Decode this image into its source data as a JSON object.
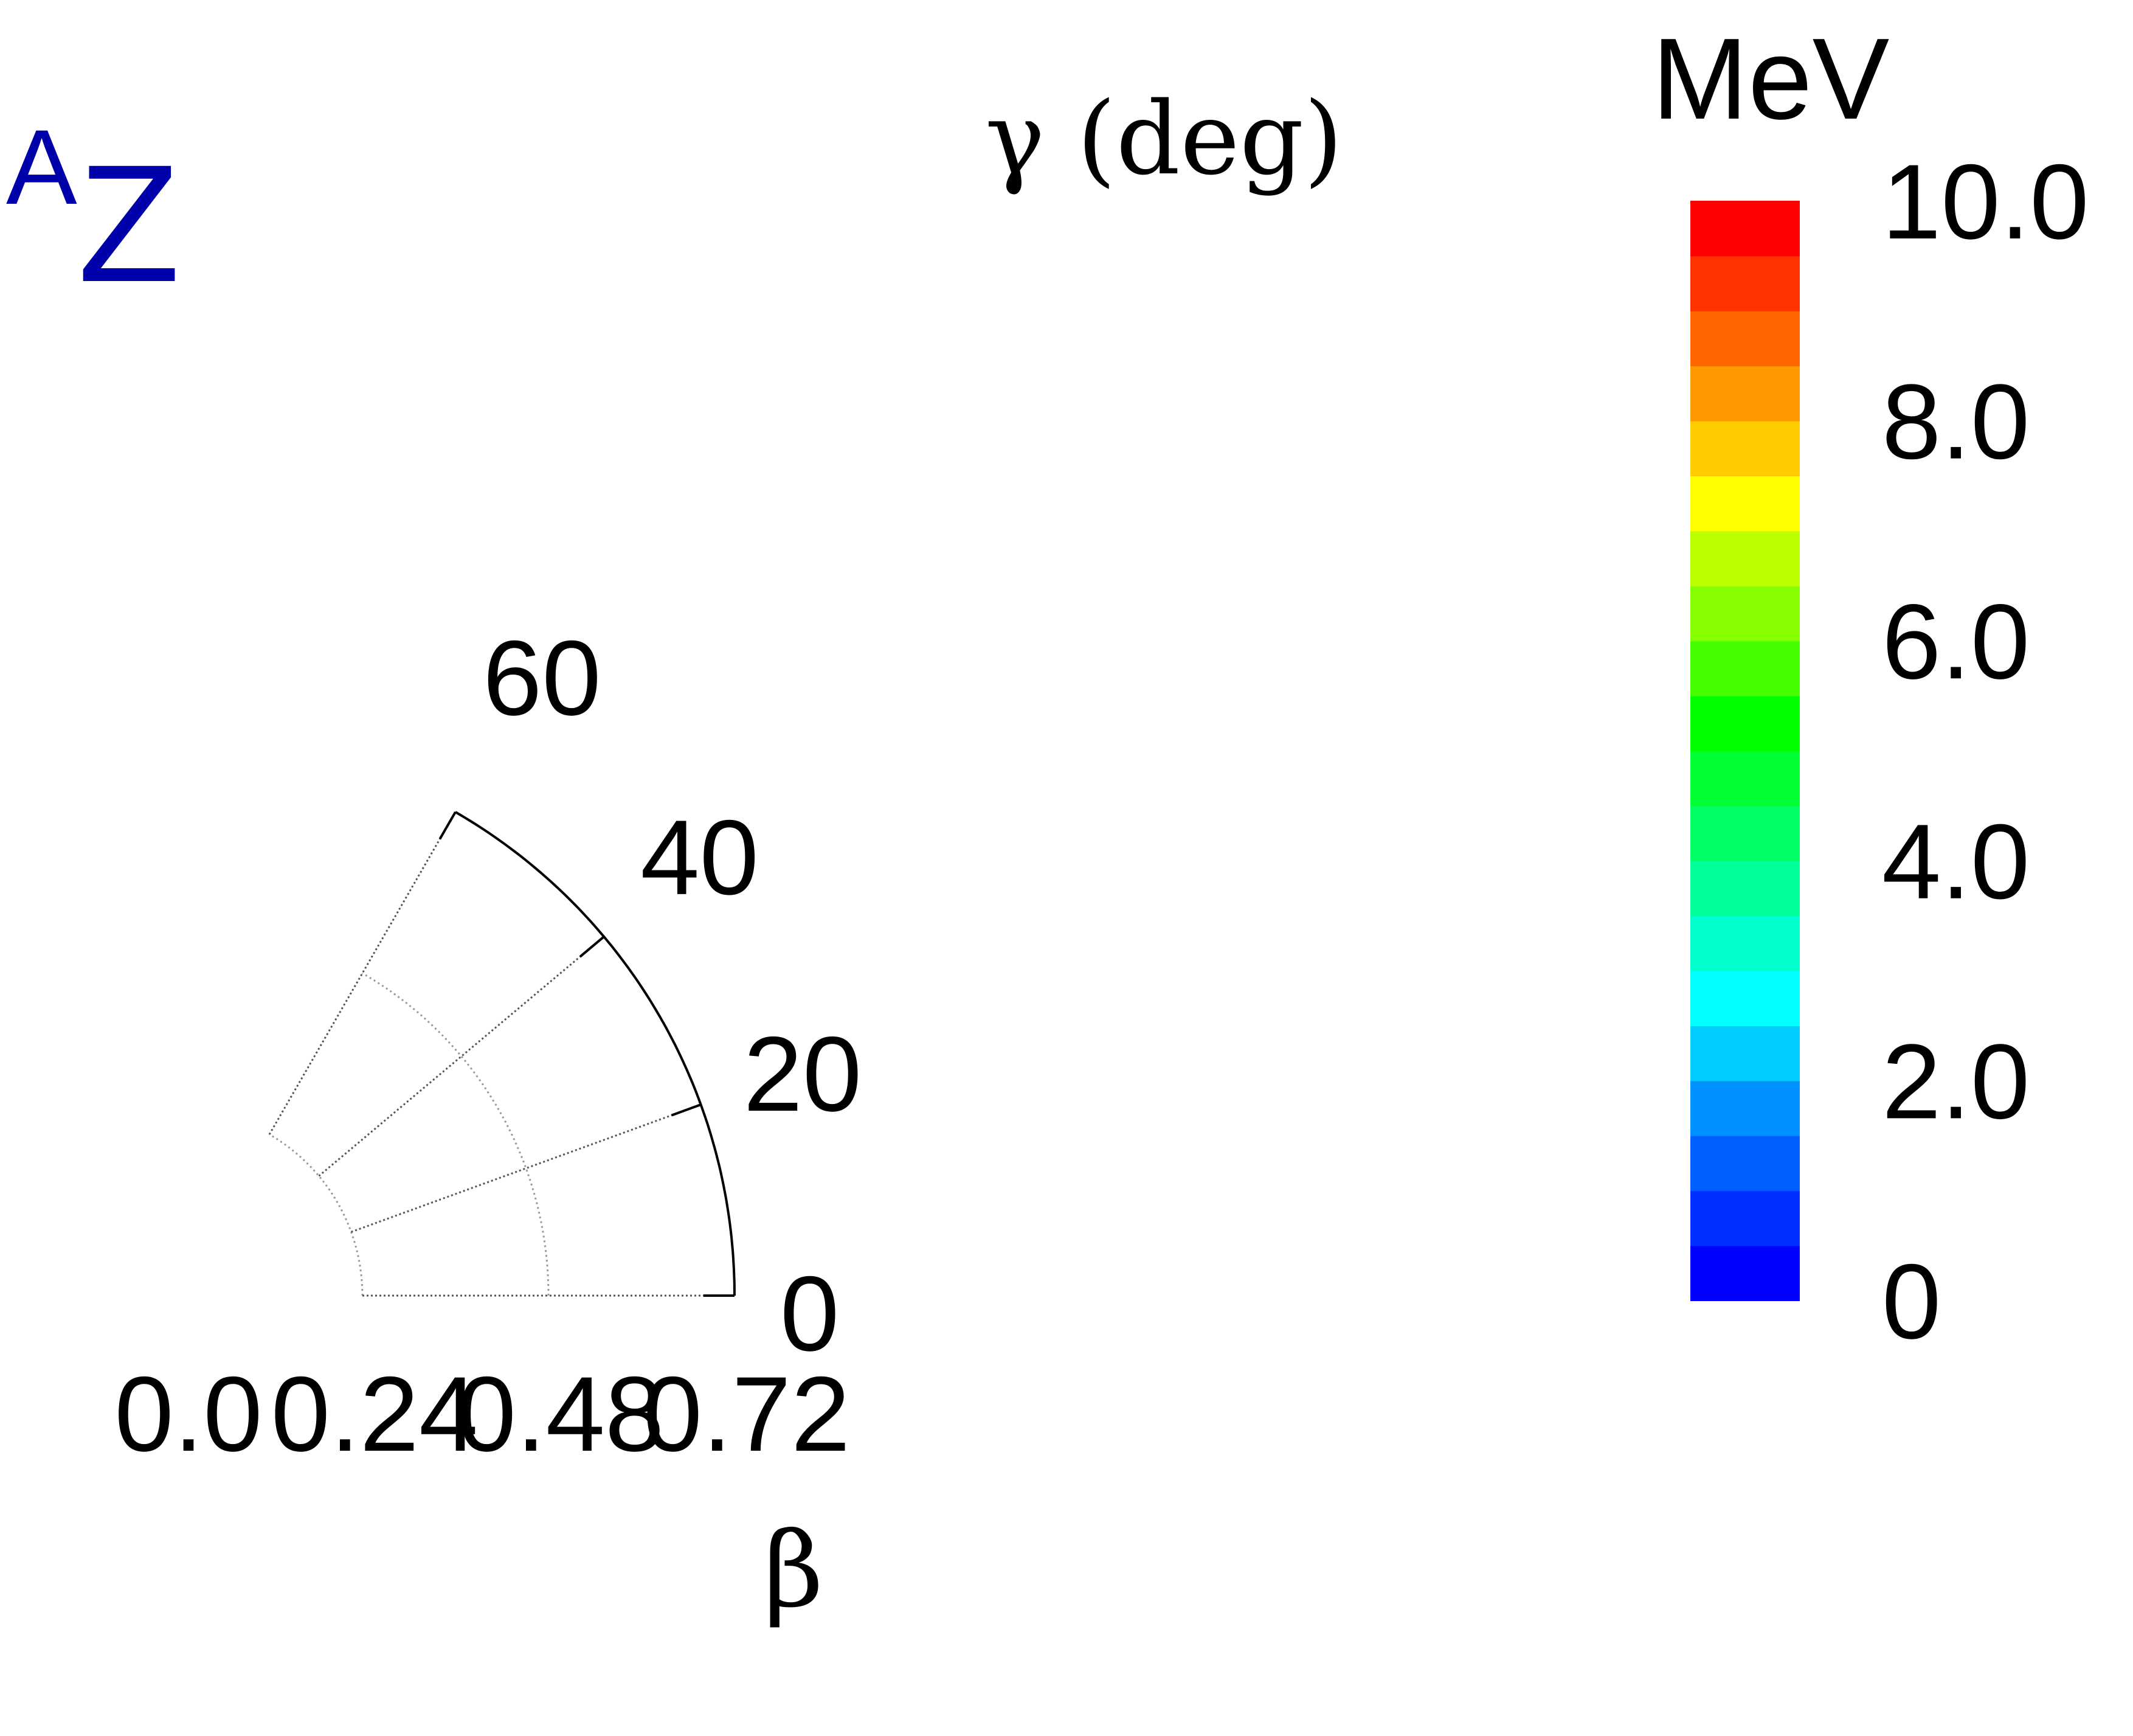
{
  "chart_data": {
    "type": "heatmap",
    "title": "",
    "nucleus_label": {
      "mass": "A",
      "symbol": "Z"
    },
    "beta_axis": {
      "label": "β",
      "range": [
        0.0,
        0.72
      ],
      "ticks": [
        "0.0",
        "0.24",
        "0.48",
        "0.72"
      ],
      "grid_radii": [
        0.24,
        0.48,
        0.72
      ],
      "inner_limit": 0.24
    },
    "gamma_axis": {
      "label": "γ (deg)",
      "range": [
        0,
        60
      ],
      "ticks": [
        "0",
        "20",
        "40",
        "60"
      ],
      "tick_values": [
        0,
        20,
        40,
        60
      ]
    },
    "colorbar": {
      "unit": "MeV",
      "range": [
        0,
        10.0
      ],
      "tick_labels": [
        "0",
        "2.0",
        "4.0",
        "6.0",
        "8.0",
        "10.0"
      ],
      "tick_values": [
        0,
        2,
        4,
        6,
        8,
        10
      ],
      "colors": [
        "#0000ff",
        "#0030ff",
        "#0060ff",
        "#0090ff",
        "#00ccff",
        "#00ffff",
        "#00ffcc",
        "#00ff99",
        "#00ff66",
        "#00ff33",
        "#00ff00",
        "#44ff00",
        "#88ff00",
        "#bbff00",
        "#ffff00",
        "#ffcc00",
        "#ff9900",
        "#ff6600",
        "#ff3300",
        "#ff0000"
      ]
    }
  }
}
